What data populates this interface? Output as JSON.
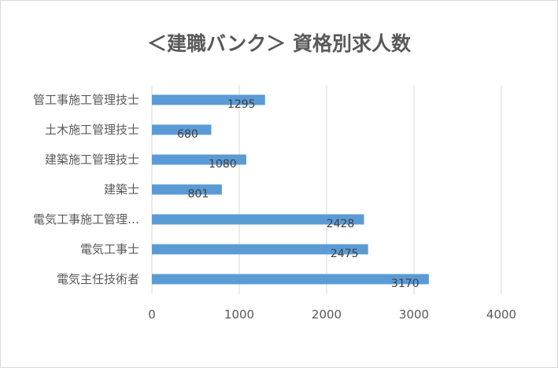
{
  "chart_data": {
    "type": "bar",
    "orientation": "horizontal",
    "title": "＜建職バンク＞ 資格別求人数",
    "categories": [
      "管工事施工管理技士",
      "土木施工管理技士",
      "建築施工管理技士",
      "建築士",
      "電気工事施工管理…",
      "電気工事士",
      "電気主任技術者"
    ],
    "values": [
      1295,
      680,
      1080,
      801,
      2428,
      2475,
      3170
    ],
    "xlim": [
      0,
      4000
    ],
    "xticks": [
      "0",
      "1000",
      "2000",
      "3000",
      "4000"
    ],
    "grid": true,
    "data_labels": true,
    "bar_color": "#5b9bd5",
    "grid_color": "#d9d9d9",
    "text_color": "#595959"
  }
}
